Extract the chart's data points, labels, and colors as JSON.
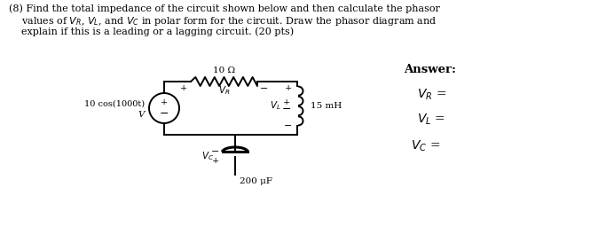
{
  "background_color": "#ffffff",
  "title_line1": "(8) Find the total impedance of the circuit shown below and then calculate the phasor",
  "title_line2": "    values of $V_R$, $V_L$, and $V_C$ in polar form for the circuit. Draw the phasor diagram and",
  "title_line3": "    explain if this is a leading or a lagging circuit. (20 pts)",
  "answer_label": "Answer:",
  "vr_label": "$V_R$ =",
  "vl_label": "$V_L$ =",
  "vc_label": "$V_C$ =",
  "resistor_label": "10 Ω",
  "inductor_label": "15 mH",
  "capacitor_label": "200 μF",
  "source_label": "10 cos(1000t)",
  "source_unit": "V"
}
